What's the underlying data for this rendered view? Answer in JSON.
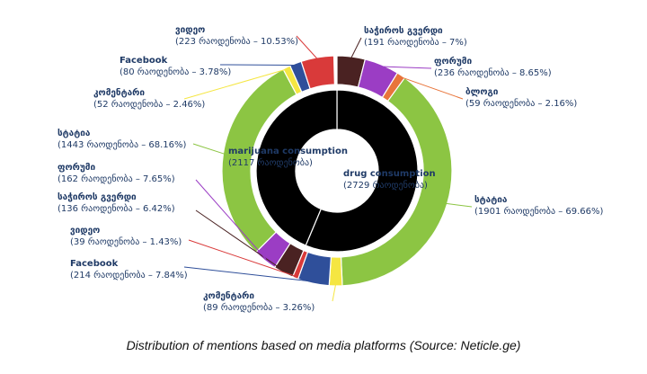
{
  "caption": "Distribution of mentions based on media platforms (Source: Neticle.ge)",
  "chart_data": {
    "type": "pie",
    "style": "nested donut",
    "inner_ring": [
      {
        "name": "marijuana consumption",
        "label": "(2117 რაოდენობა)",
        "value": 2117,
        "color": "#000000"
      },
      {
        "name": "drug consumption",
        "label": "(2729 რაოდენობა)",
        "value": 2729,
        "color": "#000000"
      }
    ],
    "outer_ring": [
      {
        "group": "drug consumption",
        "name": "საჭიროს გვერდი",
        "label": "(191 რაოდენობა – 7%)",
        "value": 191,
        "percent": 7,
        "color": "#4a2222"
      },
      {
        "group": "drug consumption",
        "name": "ფორუმი",
        "label": "(236 რაოდენობა – 8.65%)",
        "value": 236,
        "percent": 8.65,
        "color": "#9b3dc4"
      },
      {
        "group": "drug consumption",
        "name": "ბლოგი",
        "label": "(59 რაოდენობა – 2.16%)",
        "value": 59,
        "percent": 2.16,
        "color": "#e8743a"
      },
      {
        "group": "drug consumption",
        "name": "სტატია",
        "label": "(1901 რაოდენობა – 69.66%)",
        "value": 1901,
        "percent": 69.66,
        "color": "#8cc543"
      },
      {
        "group": "drug consumption",
        "name": "კომენტარი",
        "label": "(89 რაოდენობა – 3.26%)",
        "value": 89,
        "percent": 3.26,
        "color": "#f5e642"
      },
      {
        "group": "drug consumption",
        "name": "Facebook",
        "label": "(214 რაოდენობა – 7.84%)",
        "value": 214,
        "percent": 7.84,
        "color": "#2f4f9a"
      },
      {
        "group": "drug consumption",
        "name": "ვიდეო",
        "label": "(39 რაოდენობა – 1.43%)",
        "value": 39,
        "percent": 1.43,
        "color": "#d93a3a"
      },
      {
        "group": "marijuana consumption",
        "name": "საჭიროს გვერდი",
        "label": "(136 რაოდენობა – 6.42%)",
        "value": 136,
        "percent": 6.42,
        "color": "#4a2222"
      },
      {
        "group": "marijuana consumption",
        "name": "ფორუმი",
        "label": "(162 რაოდენობა – 7.65%)",
        "value": 162,
        "percent": 7.65,
        "color": "#9b3dc4"
      },
      {
        "group": "marijuana consumption",
        "name": "სტატია",
        "label": "(1443 რაოდენობა – 68.16%)",
        "value": 1443,
        "percent": 68.16,
        "color": "#8cc543"
      },
      {
        "group": "marijuana consumption",
        "name": "კომენტარი",
        "label": "(52 რაოდენობა – 2.46%)",
        "value": 52,
        "percent": 2.46,
        "color": "#f5e642"
      },
      {
        "group": "marijuana consumption",
        "name": "Facebook",
        "label": "(80 რაოდენობა – 3.78%)",
        "value": 80,
        "percent": 3.78,
        "color": "#2f4f9a"
      },
      {
        "group": "marijuana consumption",
        "name": "ვიდეო",
        "label": "(223 რაოდენობა – 10.53%)",
        "value": 223,
        "percent": 10.53,
        "color": "#d93a3a"
      }
    ],
    "legend": "none"
  }
}
